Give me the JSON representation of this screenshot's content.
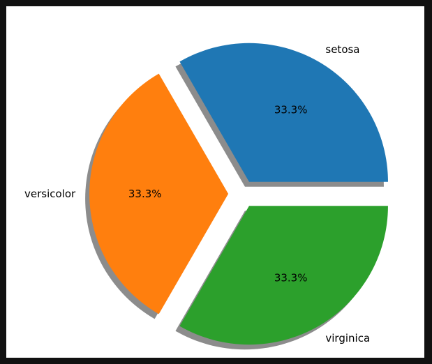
{
  "chart_data": {
    "type": "pie",
    "categories": [
      "setosa",
      "versicolor",
      "virginica"
    ],
    "values": [
      33.3,
      33.3,
      33.3
    ],
    "percent_labels": [
      "33.3%",
      "33.3%",
      "33.3%"
    ],
    "colors": [
      "#1f77b4",
      "#ff7f0e",
      "#2ca02c"
    ],
    "shadow": true,
    "exploded": true,
    "legend": "none"
  }
}
